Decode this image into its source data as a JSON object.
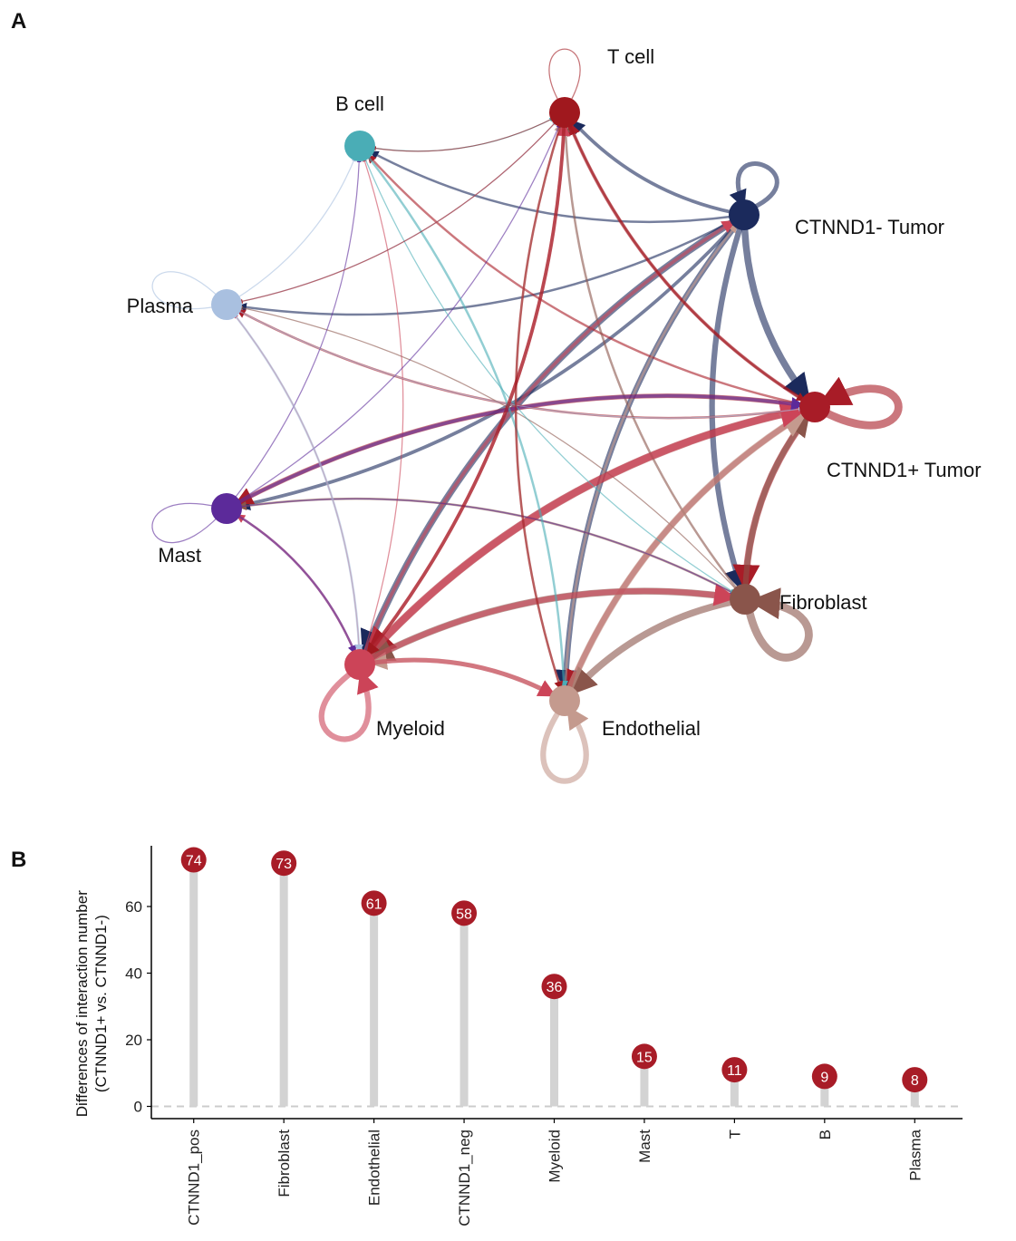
{
  "panels": {
    "a_label": "A",
    "b_label": "B"
  },
  "chart_data": [
    {
      "type": "network",
      "nodes": [
        {
          "id": "tcell",
          "label": "T cell",
          "color": "#A0181E"
        },
        {
          "id": "neg",
          "label": "CTNND1- Tumor",
          "color": "#1B2A5C"
        },
        {
          "id": "pos",
          "label": "CTNND1+ Tumor",
          "color": "#A81C27"
        },
        {
          "id": "fib",
          "label": "Fibroblast",
          "color": "#8A554B"
        },
        {
          "id": "endo",
          "label": "Endothelial",
          "color": "#C49A8E"
        },
        {
          "id": "mye",
          "label": "Myeloid",
          "color": "#CC4458"
        },
        {
          "id": "mast",
          "label": "Mast",
          "color": "#5C2A9A"
        },
        {
          "id": "plasma",
          "label": "Plasma",
          "color": "#A9C0E0"
        },
        {
          "id": "bcell",
          "label": "B cell",
          "color": "#4AADB6"
        }
      ],
      "edges": [
        {
          "from": "neg",
          "to": "mye",
          "weight": 6
        },
        {
          "from": "neg",
          "to": "endo",
          "weight": 5
        },
        {
          "from": "neg",
          "to": "pos",
          "weight": 6
        },
        {
          "from": "neg",
          "to": "fib",
          "weight": 5
        },
        {
          "from": "neg",
          "to": "tcell",
          "weight": 3
        },
        {
          "from": "neg",
          "to": "bcell",
          "weight": 2
        },
        {
          "from": "neg",
          "to": "plasma",
          "weight": 2
        },
        {
          "from": "neg",
          "to": "mast",
          "weight": 3
        },
        {
          "from": "pos",
          "to": "mye",
          "weight": 7
        },
        {
          "from": "pos",
          "to": "endo",
          "weight": 5
        },
        {
          "from": "pos",
          "to": "fib",
          "weight": 6
        },
        {
          "from": "pos",
          "to": "mast",
          "weight": 4
        },
        {
          "from": "pos",
          "to": "plasma",
          "weight": 2
        },
        {
          "from": "pos",
          "to": "bcell",
          "weight": 2
        },
        {
          "from": "pos",
          "to": "tcell",
          "weight": 3
        },
        {
          "from": "fib",
          "to": "mye",
          "weight": 6
        },
        {
          "from": "fib",
          "to": "endo",
          "weight": 6
        },
        {
          "from": "fib",
          "to": "pos",
          "weight": 5
        },
        {
          "from": "fib",
          "to": "mast",
          "weight": 2
        },
        {
          "from": "fib",
          "to": "tcell",
          "weight": 2
        },
        {
          "from": "fib",
          "to": "plasma",
          "weight": 1
        },
        {
          "from": "endo",
          "to": "pos",
          "weight": 6
        },
        {
          "from": "endo",
          "to": "mye",
          "weight": 4
        },
        {
          "from": "endo",
          "to": "tcell",
          "weight": 2
        },
        {
          "from": "endo",
          "to": "neg",
          "weight": 2
        },
        {
          "from": "mye",
          "to": "pos",
          "weight": 6
        },
        {
          "from": "mye",
          "to": "fib",
          "weight": 5
        },
        {
          "from": "mye",
          "to": "endo",
          "weight": 4
        },
        {
          "from": "mye",
          "to": "tcell",
          "weight": 3
        },
        {
          "from": "mye",
          "to": "neg",
          "weight": 3
        },
        {
          "from": "mye",
          "to": "mast",
          "weight": 2
        },
        {
          "from": "mye",
          "to": "plasma",
          "weight": 1
        },
        {
          "from": "mye",
          "to": "bcell",
          "weight": 1
        },
        {
          "from": "mast",
          "to": "pos",
          "weight": 3
        },
        {
          "from": "mast",
          "to": "mye",
          "weight": 2
        },
        {
          "from": "mast",
          "to": "fib",
          "weight": 1
        },
        {
          "from": "mast",
          "to": "tcell",
          "weight": 1
        },
        {
          "from": "mast",
          "to": "bcell",
          "weight": 1
        },
        {
          "from": "plasma",
          "to": "mye",
          "weight": 2
        },
        {
          "from": "plasma",
          "to": "pos",
          "weight": 1
        },
        {
          "from": "plasma",
          "to": "tcell",
          "weight": 1
        },
        {
          "from": "plasma",
          "to": "bcell",
          "weight": 1
        },
        {
          "from": "bcell",
          "to": "endo",
          "weight": 2
        },
        {
          "from": "bcell",
          "to": "tcell",
          "weight": 1
        },
        {
          "from": "bcell",
          "to": "fib",
          "weight": 1
        },
        {
          "from": "tcell",
          "to": "mye",
          "weight": 3
        },
        {
          "from": "tcell",
          "to": "endo",
          "weight": 2
        },
        {
          "from": "tcell",
          "to": "pos",
          "weight": 2
        },
        {
          "from": "tcell",
          "to": "bcell",
          "weight": 1
        },
        {
          "from": "tcell",
          "to": "plasma",
          "weight": 1
        }
      ],
      "self_loops": [
        {
          "node": "tcell",
          "weight": 1
        },
        {
          "node": "neg",
          "weight": 4
        },
        {
          "node": "pos",
          "weight": 7
        },
        {
          "node": "fib",
          "weight": 7
        },
        {
          "node": "endo",
          "weight": 5
        },
        {
          "node": "mye",
          "weight": 5
        },
        {
          "node": "mast",
          "weight": 1
        },
        {
          "node": "plasma",
          "weight": 1
        }
      ]
    },
    {
      "type": "bar",
      "style": "lollipop",
      "categories": [
        "CTNND1_pos",
        "Fibroblast",
        "Endothelial",
        "CTNND1_neg",
        "Myeloid",
        "Mast",
        "T",
        "B",
        "Plasma"
      ],
      "values": [
        74,
        73,
        61,
        58,
        36,
        15,
        11,
        9,
        8
      ],
      "ylabel": "Differences of interaction number",
      "ylabel2": "(CTNND1+ vs. CTNND1-)",
      "xlabel": "",
      "yticks": [
        0,
        20,
        40,
        60
      ],
      "ylim": [
        -3,
        78
      ],
      "point_color": "#A81C27",
      "stem_color": "#D3D3D3",
      "reference_line": 0
    }
  ]
}
